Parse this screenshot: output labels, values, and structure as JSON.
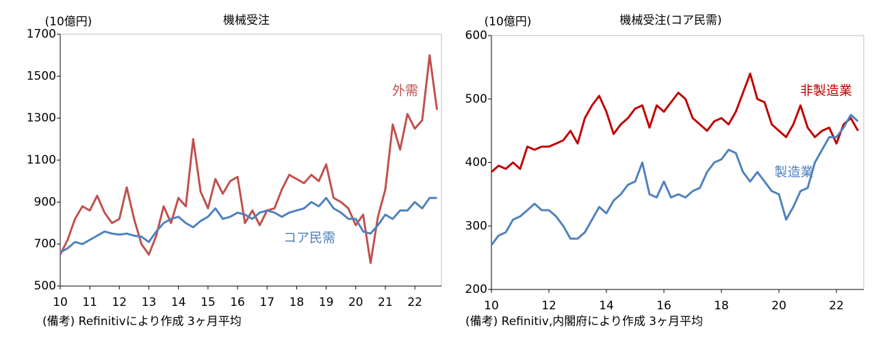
{
  "chart_data": [
    {
      "type": "line",
      "title": "機械受注",
      "unit_label": "(10億円)",
      "note": "(備考) Refinitivにより作成 3ヶ月平均",
      "x": [
        10,
        10.25,
        10.5,
        10.75,
        11,
        11.25,
        11.5,
        11.75,
        12,
        12.25,
        12.5,
        12.75,
        13,
        13.25,
        13.5,
        13.75,
        14,
        14.25,
        14.5,
        14.75,
        15,
        15.25,
        15.5,
        15.75,
        16,
        16.25,
        16.5,
        16.75,
        17,
        17.25,
        17.5,
        17.75,
        18,
        18.25,
        18.5,
        18.75,
        19,
        19.25,
        19.5,
        19.75,
        20,
        20.25,
        20.5,
        20.75,
        21,
        21.25,
        21.5,
        21.75,
        22,
        22.25,
        22.5,
        22.75
      ],
      "xlim": [
        10,
        22.9
      ],
      "xticks": [
        10,
        11,
        12,
        13,
        14,
        15,
        16,
        17,
        18,
        19,
        20,
        21,
        22
      ],
      "ylim": [
        500,
        1700
      ],
      "yticks": [
        500,
        700,
        900,
        1100,
        1300,
        1500,
        1700
      ],
      "series": [
        {
          "name": "外需",
          "color": "#c0504d",
          "values": [
            650,
            720,
            820,
            880,
            860,
            930,
            850,
            800,
            820,
            970,
            820,
            700,
            650,
            740,
            880,
            800,
            920,
            880,
            1200,
            950,
            870,
            1010,
            940,
            1000,
            1020,
            800,
            860,
            790,
            860,
            870,
            960,
            1030,
            1010,
            990,
            1030,
            1000,
            1080,
            920,
            900,
            870,
            790,
            840,
            610,
            830,
            960,
            1270,
            1150,
            1320,
            1250,
            1290,
            1600,
            1340
          ]
        },
        {
          "name": "コア民需",
          "color": "#4f81bd",
          "values": [
            660,
            680,
            710,
            700,
            720,
            740,
            760,
            750,
            745,
            750,
            740,
            735,
            710,
            760,
            800,
            820,
            830,
            800,
            780,
            810,
            830,
            870,
            820,
            830,
            850,
            840,
            820,
            850,
            860,
            850,
            830,
            850,
            860,
            870,
            900,
            880,
            920,
            870,
            850,
            820,
            820,
            760,
            750,
            790,
            840,
            820,
            860,
            860,
            900,
            870,
            920,
            920
          ]
        }
      ]
    },
    {
      "type": "line",
      "title": "機械受注(コア民需)",
      "unit_label": "(10億円)",
      "note": "(備考) Refinitiv,内閣府により作成 3ヶ月平均",
      "x": [
        10,
        10.25,
        10.5,
        10.75,
        11,
        11.25,
        11.5,
        11.75,
        12,
        12.25,
        12.5,
        12.75,
        13,
        13.25,
        13.5,
        13.75,
        14,
        14.25,
        14.5,
        14.75,
        15,
        15.25,
        15.5,
        15.75,
        16,
        16.25,
        16.5,
        16.75,
        17,
        17.25,
        17.5,
        17.75,
        18,
        18.25,
        18.5,
        18.75,
        19,
        19.25,
        19.5,
        19.75,
        20,
        20.25,
        20.5,
        20.75,
        21,
        21.25,
        21.5,
        21.75,
        22,
        22.25,
        22.5,
        22.75
      ],
      "xlim": [
        10,
        22.95
      ],
      "xticks": [
        10,
        12,
        14,
        16,
        18,
        20,
        22
      ],
      "ylim": [
        200,
        600
      ],
      "yticks": [
        200,
        300,
        400,
        500,
        600
      ],
      "series": [
        {
          "name": "非製造業",
          "color": "#c00000",
          "values": [
            385,
            395,
            390,
            400,
            390,
            425,
            420,
            425,
            425,
            430,
            435,
            450,
            430,
            470,
            490,
            505,
            480,
            445,
            460,
            470,
            485,
            490,
            455,
            490,
            480,
            495,
            510,
            500,
            470,
            460,
            450,
            465,
            470,
            460,
            480,
            510,
            540,
            500,
            495,
            460,
            450,
            440,
            460,
            490,
            455,
            440,
            450,
            455,
            430,
            460,
            470,
            450
          ]
        },
        {
          "name": "製造業",
          "color": "#4f81bd",
          "values": [
            270,
            285,
            290,
            310,
            315,
            325,
            335,
            325,
            325,
            315,
            300,
            280,
            280,
            290,
            310,
            330,
            320,
            340,
            350,
            365,
            370,
            400,
            350,
            345,
            370,
            345,
            350,
            345,
            355,
            360,
            385,
            400,
            405,
            420,
            415,
            385,
            370,
            385,
            370,
            355,
            350,
            310,
            330,
            355,
            360,
            400,
            420,
            440,
            440,
            455,
            475,
            465
          ]
        }
      ]
    }
  ]
}
